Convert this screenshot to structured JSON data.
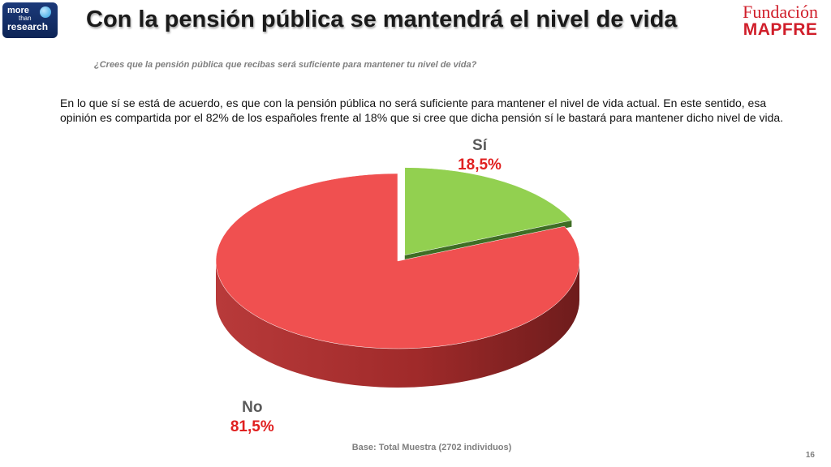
{
  "header": {
    "title": "Con la pensión pública se mantendrá el nivel de vida",
    "logo_left": {
      "line1": "more",
      "line2": "than",
      "line3": "research"
    },
    "logo_right": {
      "line1": "Fundación",
      "line2": "MAPFRE"
    }
  },
  "question": "¿Crees que la pensión pública que recibas será suficiente para mantener tu nivel de vida?",
  "body_text": "En lo que sí se está de acuerdo, es que con la pensión pública no será suficiente para mantener el nivel de vida actual. En este sentido, esa opinión es compartida por el 82% de los españoles frente al 18% que si cree que dicha pensión sí le bastará para mantener dicho nivel de vida.",
  "chart_data": {
    "type": "pie",
    "title": "",
    "slices": [
      {
        "label": "Sí",
        "value": 18.5,
        "value_label": "18,5%",
        "color": "#92d050",
        "exploded": true
      },
      {
        "label": "No",
        "value": 81.5,
        "value_label": "81,5%",
        "color": "#f05050",
        "exploded": false
      }
    ],
    "style": "3d"
  },
  "footer": {
    "base": "Base: Total Muestra (2702 individuos)",
    "page_number": "16"
  }
}
